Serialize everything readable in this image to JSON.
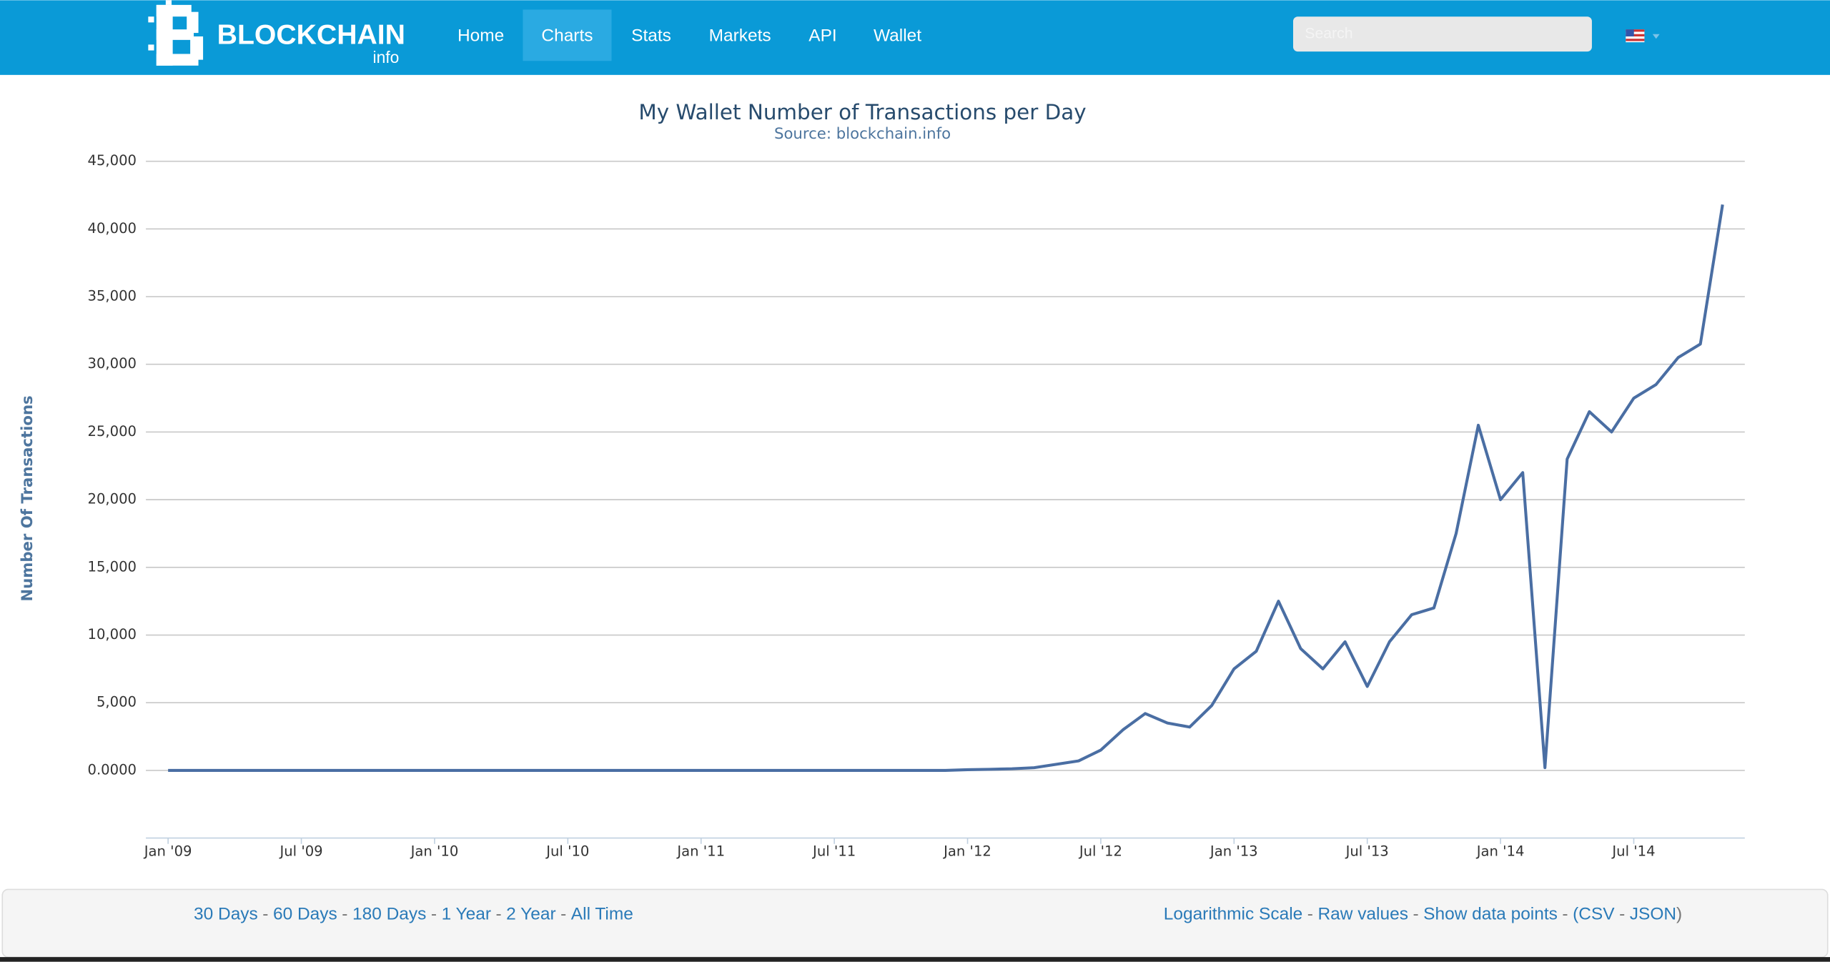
{
  "header": {
    "logo_text": "BLOCKCHAIN",
    "logo_sub": "info",
    "nav": [
      "Home",
      "Charts",
      "Stats",
      "Markets",
      "API",
      "Wallet"
    ],
    "active_nav": "Charts",
    "search_placeholder": "Search"
  },
  "chart_data": {
    "type": "line",
    "title": "My Wallet Number of Transactions per Day",
    "subtitle": "Source: blockchain.info",
    "y_label": "Number Of Transactions",
    "color": "#4a6ea3",
    "grid": true,
    "x": [
      "2009-01",
      "2009-02",
      "2009-03",
      "2009-04",
      "2009-05",
      "2009-06",
      "2009-07",
      "2009-08",
      "2009-09",
      "2009-10",
      "2009-11",
      "2009-12",
      "2010-01",
      "2010-02",
      "2010-03",
      "2010-04",
      "2010-05",
      "2010-06",
      "2010-07",
      "2010-08",
      "2010-09",
      "2010-10",
      "2010-11",
      "2010-12",
      "2011-01",
      "2011-02",
      "2011-03",
      "2011-04",
      "2011-05",
      "2011-06",
      "2011-07",
      "2011-08",
      "2011-09",
      "2011-10",
      "2011-11",
      "2011-12",
      "2012-01",
      "2012-02",
      "2012-03",
      "2012-04",
      "2012-05",
      "2012-06",
      "2012-07",
      "2012-08",
      "2012-09",
      "2012-10",
      "2012-11",
      "2012-12",
      "2013-01",
      "2013-02",
      "2013-03",
      "2013-04",
      "2013-05",
      "2013-06",
      "2013-07",
      "2013-08",
      "2013-09",
      "2013-10",
      "2013-11",
      "2013-12",
      "2014-01",
      "2014-02",
      "2014-03",
      "2014-04",
      "2014-05",
      "2014-06",
      "2014-07",
      "2014-08",
      "2014-09",
      "2014-10",
      "2014-11"
    ],
    "values": [
      0,
      0,
      0,
      0,
      0,
      0,
      0,
      0,
      0,
      0,
      0,
      0,
      0,
      0,
      0,
      0,
      0,
      0,
      0,
      0,
      0,
      0,
      0,
      0,
      0,
      0,
      0,
      0,
      0,
      0,
      0,
      0,
      0,
      0,
      0,
      0,
      50,
      80,
      120,
      200,
      450,
      700,
      1500,
      3000,
      4200,
      3500,
      3200,
      4800,
      7500,
      8800,
      12500,
      9000,
      7500,
      9500,
      6200,
      9500,
      11500,
      12000,
      17500,
      25500,
      20000,
      22000,
      200,
      23000,
      26500,
      25000,
      27500,
      28500,
      30500,
      31500,
      41800
    ],
    "xlim": [
      "2008-12",
      "2014-12"
    ],
    "xticks": [
      {
        "value": "2009-01",
        "label": "Jan '09"
      },
      {
        "value": "2009-07",
        "label": "Jul '09"
      },
      {
        "value": "2010-01",
        "label": "Jan '10"
      },
      {
        "value": "2010-07",
        "label": "Jul '10"
      },
      {
        "value": "2011-01",
        "label": "Jan '11"
      },
      {
        "value": "2011-07",
        "label": "Jul '11"
      },
      {
        "value": "2012-01",
        "label": "Jan '12"
      },
      {
        "value": "2012-07",
        "label": "Jul '12"
      },
      {
        "value": "2013-01",
        "label": "Jan '13"
      },
      {
        "value": "2013-07",
        "label": "Jul '13"
      },
      {
        "value": "2014-01",
        "label": "Jan '14"
      },
      {
        "value": "2014-07",
        "label": "Jul '14"
      }
    ],
    "ylim": [
      -5000,
      45000
    ],
    "yticks": [
      {
        "value": 0,
        "label": "0.0000"
      },
      {
        "value": 5000,
        "label": "5,000"
      },
      {
        "value": 10000,
        "label": "10,000"
      },
      {
        "value": 15000,
        "label": "15,000"
      },
      {
        "value": 20000,
        "label": "20,000"
      },
      {
        "value": 25000,
        "label": "25,000"
      },
      {
        "value": 30000,
        "label": "30,000"
      },
      {
        "value": 35000,
        "label": "35,000"
      },
      {
        "value": 40000,
        "label": "40,000"
      },
      {
        "value": 45000,
        "label": "45,000"
      }
    ]
  },
  "footer": {
    "ranges": [
      "30 Days",
      "60 Days",
      "180 Days",
      "1 Year",
      "2 Year",
      "All Time"
    ],
    "separator": "-",
    "options": [
      "Logarithmic Scale",
      "Raw values",
      "Show data points"
    ],
    "open_paren": "(",
    "exports": [
      "CSV",
      "JSON"
    ],
    "close_paren": ")"
  }
}
